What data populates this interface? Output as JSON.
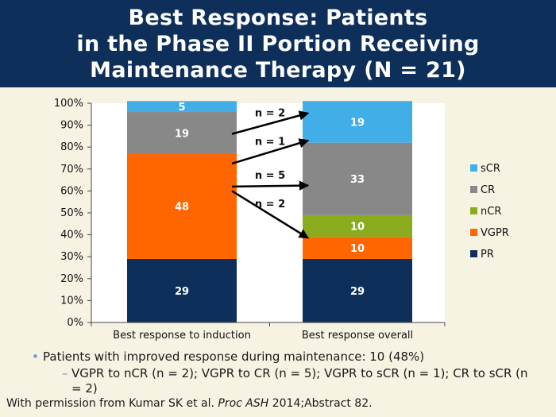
{
  "header": {
    "line1": "Best Response: Patients",
    "line2": "in the Phase II Portion Receiving",
    "line3": "Maintenance Therapy (N = 21)"
  },
  "chart_data": {
    "type": "bar",
    "stacked": true,
    "categories": [
      "Best response to induction",
      "Best response overall"
    ],
    "series": [
      {
        "name": "PR",
        "values": [
          29,
          29
        ],
        "color": "#0e2f5a"
      },
      {
        "name": "VGPR",
        "values": [
          48,
          10
        ],
        "color": "#ff6600"
      },
      {
        "name": "nCR",
        "values": [
          0,
          10
        ],
        "color": "#8aab1e"
      },
      {
        "name": "CR",
        "values": [
          19,
          33
        ],
        "color": "#888888"
      },
      {
        "name": "sCR",
        "values": [
          5,
          19
        ],
        "color": "#41aee8"
      }
    ],
    "ylim": [
      0,
      100
    ],
    "yticks": [
      "0%",
      "10%",
      "20%",
      "30%",
      "40%",
      "50%",
      "60%",
      "70%",
      "80%",
      "90%",
      "100%"
    ],
    "legend": [
      "sCR",
      "CR",
      "nCR",
      "VGPR",
      "PR"
    ],
    "legend_position": "right",
    "annotations": [
      {
        "label": "n = 2",
        "from_pct": 60,
        "to_pct": 38.5
      },
      {
        "label": "n = 5",
        "from_pct": 62,
        "to_pct": 62.5
      },
      {
        "label": "n = 1",
        "from_pct": 72.5,
        "to_pct": 83
      },
      {
        "label": "n = 2",
        "from_pct": 86,
        "to_pct": 95.5
      }
    ]
  },
  "bullets": {
    "main": "Patients with improved response during maintenance: 10 (48%)",
    "sub": "VGPR to nCR (n = 2); VGPR to CR (n = 5); VGPR to sCR (n = 1); CR to sCR (n = 2)"
  },
  "footer": {
    "prefix": "With permission from Kumar SK et al. ",
    "journal": "Proc ASH",
    "suffix": " 2014;Abstract 82."
  }
}
